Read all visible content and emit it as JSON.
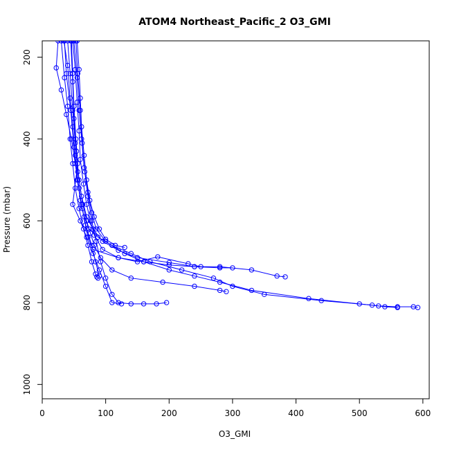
{
  "chart_data": {
    "type": "line",
    "title": "ATOM4 Northeast_Pacific_2 O3_GMI",
    "xlabel": "O3_GMI",
    "ylabel": "Pressure (mbar)",
    "xlim": [
      0,
      610
    ],
    "ylim": [
      1035,
      160
    ],
    "y_reversed": true,
    "x_ticks": [
      0,
      100,
      200,
      300,
      400,
      500,
      600
    ],
    "y_ticks": [
      200,
      400,
      600,
      800,
      1000
    ],
    "grid": false,
    "legend": "none",
    "color": "#0000ff",
    "marker": "open-circle",
    "series": [
      {
        "values": [
          [
            35,
            160
          ],
          [
            38,
            240
          ],
          [
            45,
            330
          ],
          [
            50,
            420
          ],
          [
            55,
            500
          ],
          [
            62,
            560
          ],
          [
            68,
            610
          ],
          [
            72,
            640
          ],
          [
            80,
            670
          ],
          [
            120,
            690
          ],
          [
            160,
            700
          ],
          [
            200,
            708
          ],
          [
            240,
            712
          ],
          [
            280,
            712
          ],
          [
            330,
            720
          ],
          [
            370,
            735
          ],
          [
            383,
            737
          ]
        ]
      },
      {
        "values": [
          [
            30,
            160
          ],
          [
            35,
            250
          ],
          [
            40,
            320
          ],
          [
            44,
            400
          ],
          [
            48,
            460
          ],
          [
            52,
            520
          ],
          [
            58,
            570
          ],
          [
            65,
            620
          ],
          [
            72,
            660
          ],
          [
            78,
            700
          ],
          [
            84,
            730
          ],
          [
            86,
            737
          ],
          [
            88,
            740
          ]
        ]
      },
      {
        "values": [
          [
            48,
            160
          ],
          [
            52,
            230
          ],
          [
            55,
            310
          ],
          [
            58,
            380
          ],
          [
            60,
            450
          ],
          [
            65,
            510
          ],
          [
            70,
            560
          ],
          [
            76,
            600
          ],
          [
            82,
            635
          ],
          [
            95,
            670
          ],
          [
            120,
            690
          ],
          [
            150,
            700
          ],
          [
            182,
            688
          ],
          [
            230,
            705
          ],
          [
            250,
            712
          ]
        ]
      },
      {
        "values": [
          [
            50,
            160
          ],
          [
            55,
            250
          ],
          [
            58,
            330
          ],
          [
            62,
            400
          ],
          [
            66,
            470
          ],
          [
            72,
            530
          ],
          [
            78,
            580
          ],
          [
            85,
            620
          ],
          [
            100,
            650
          ],
          [
            130,
            680
          ],
          [
            160,
            700
          ],
          [
            200,
            720
          ],
          [
            240,
            735
          ],
          [
            280,
            750
          ],
          [
            330,
            770
          ],
          [
            420,
            790
          ],
          [
            500,
            803
          ],
          [
            530,
            808
          ],
          [
            560,
            810
          ],
          [
            585,
            810
          ],
          [
            592,
            812
          ]
        ]
      },
      {
        "values": [
          [
            45,
            160
          ],
          [
            48,
            260
          ],
          [
            50,
            350
          ],
          [
            54,
            430
          ],
          [
            58,
            500
          ],
          [
            64,
            560
          ],
          [
            70,
            600
          ],
          [
            76,
            630
          ],
          [
            82,
            660
          ],
          [
            92,
            690
          ],
          [
            110,
            720
          ],
          [
            140,
            740
          ],
          [
            190,
            750
          ],
          [
            240,
            760
          ],
          [
            280,
            770
          ],
          [
            290,
            773
          ]
        ]
      },
      {
        "values": [
          [
            53,
            160
          ],
          [
            56,
            240
          ],
          [
            60,
            330
          ],
          [
            63,
            410
          ],
          [
            67,
            480
          ],
          [
            72,
            540
          ],
          [
            78,
            600
          ],
          [
            85,
            650
          ],
          [
            92,
            700
          ],
          [
            100,
            740
          ],
          [
            110,
            780
          ],
          [
            120,
            800
          ],
          [
            140,
            803
          ],
          [
            160,
            803
          ],
          [
            180,
            803
          ],
          [
            196,
            800
          ]
        ]
      },
      {
        "values": [
          [
            40,
            160
          ],
          [
            44,
            240
          ],
          [
            48,
            330
          ],
          [
            52,
            410
          ],
          [
            56,
            480
          ],
          [
            62,
            540
          ],
          [
            70,
            590
          ],
          [
            80,
            620
          ],
          [
            95,
            650
          ],
          [
            120,
            672
          ],
          [
            150,
            690
          ],
          [
            200,
            702
          ],
          [
            240,
            712
          ],
          [
            280,
            715
          ],
          [
            300,
            715
          ]
        ]
      },
      {
        "values": [
          [
            25,
            160
          ],
          [
            22,
            226
          ],
          [
            30,
            280
          ],
          [
            38,
            340
          ],
          [
            46,
            400
          ],
          [
            52,
            460
          ],
          [
            58,
            520
          ],
          [
            63,
            570
          ],
          [
            70,
            620
          ],
          [
            78,
            660
          ],
          [
            84,
            700
          ],
          [
            90,
            735
          ]
        ]
      },
      {
        "values": [
          [
            34,
            160
          ],
          [
            40,
            220
          ],
          [
            44,
            300
          ],
          [
            48,
            370
          ],
          [
            52,
            440
          ],
          [
            56,
            500
          ],
          [
            60,
            550
          ],
          [
            66,
            590
          ],
          [
            74,
            620
          ],
          [
            88,
            640
          ],
          [
            110,
            660
          ],
          [
            140,
            680
          ],
          [
            170,
            700
          ],
          [
            220,
            720
          ],
          [
            270,
            740
          ],
          [
            300,
            760
          ],
          [
            350,
            780
          ],
          [
            440,
            795
          ],
          [
            520,
            806
          ],
          [
            540,
            810
          ],
          [
            560,
            812
          ]
        ]
      },
      {
        "values": [
          [
            55,
            160
          ],
          [
            58,
            230
          ],
          [
            60,
            300
          ],
          [
            62,
            370
          ],
          [
            66,
            440
          ],
          [
            70,
            500
          ],
          [
            75,
            550
          ],
          [
            82,
            590
          ],
          [
            90,
            620
          ],
          [
            100,
            645
          ],
          [
            115,
            660
          ],
          [
            130,
            665
          ]
        ]
      },
      {
        "values": [
          [
            46,
            160
          ],
          [
            48,
            240
          ],
          [
            50,
            320
          ],
          [
            53,
            400
          ],
          [
            56,
            460
          ],
          [
            48,
            560
          ],
          [
            60,
            600
          ],
          [
            70,
            640
          ],
          [
            80,
            680
          ],
          [
            90,
            720
          ],
          [
            100,
            760
          ],
          [
            110,
            800
          ],
          [
            125,
            803
          ]
        ]
      }
    ]
  }
}
